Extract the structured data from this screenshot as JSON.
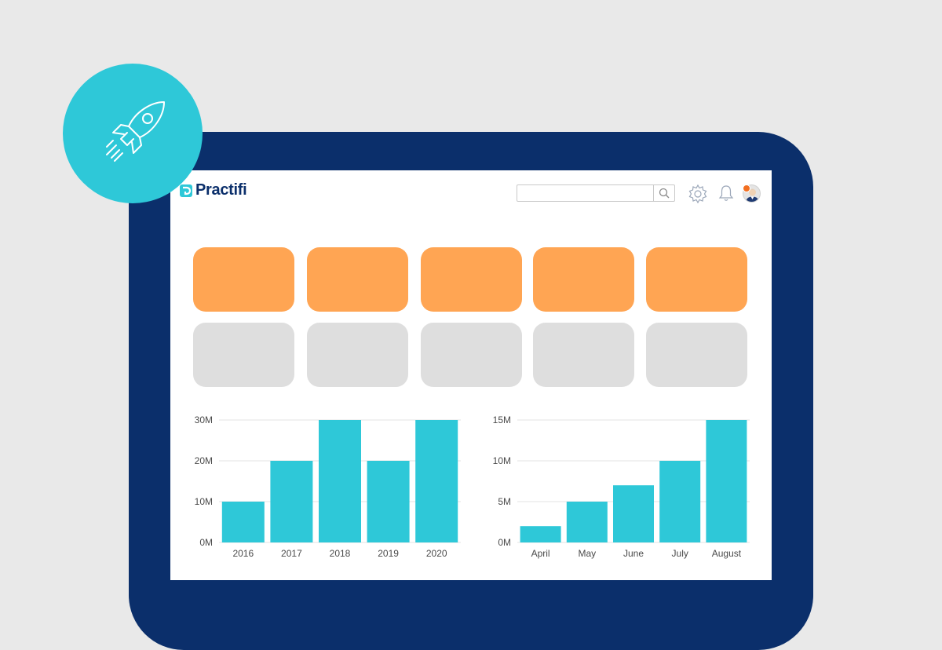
{
  "brand": {
    "name": "Practifi",
    "color": "#0b2f6b",
    "accent": "#2ec8d8"
  },
  "header": {
    "search_placeholder": "",
    "icons": [
      "search-icon",
      "gear-icon",
      "bell-icon",
      "avatar"
    ]
  },
  "tiles": {
    "row1_color": "#ffa553",
    "row2_color": "#dedede",
    "count_per_row": 5
  },
  "chart_data": [
    {
      "type": "bar",
      "categories": [
        "2016",
        "2017",
        "2018",
        "2019",
        "2020"
      ],
      "values": [
        10,
        20,
        30,
        20,
        30
      ],
      "unit": "M",
      "yticks": [
        "0M",
        "10M",
        "20M",
        "30M"
      ],
      "ylim": [
        0,
        30
      ],
      "grid": true,
      "color": "#2ec8d8"
    },
    {
      "type": "bar",
      "categories": [
        "April",
        "May",
        "June",
        "July",
        "August"
      ],
      "values": [
        2,
        5,
        7,
        10,
        15
      ],
      "unit": "M",
      "yticks": [
        "0M",
        "5M",
        "10M",
        "15M"
      ],
      "ylim": [
        0,
        15
      ],
      "grid": true,
      "color": "#2ec8d8"
    }
  ]
}
